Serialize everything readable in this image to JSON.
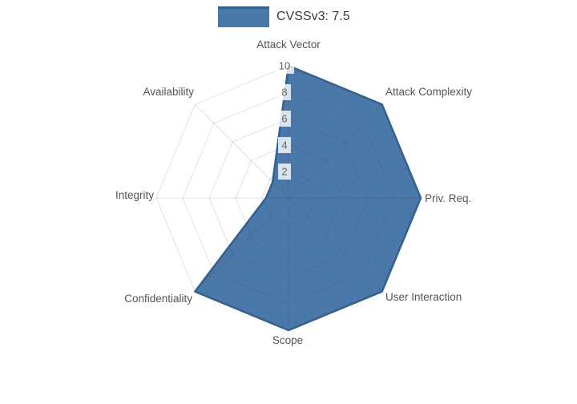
{
  "chart_data": {
    "type": "radar",
    "legend_label": "CVSSv3: 7.5",
    "categories": [
      "Attack Vector",
      "Attack Complexity",
      "Priv. Req.",
      "User Interaction",
      "Scope",
      "Confidentiality",
      "Integrity",
      "Availability"
    ],
    "series": [
      {
        "name": "CVSSv3: 7.5",
        "values": [
          10,
          10,
          10,
          10,
          10,
          10,
          1.7,
          1.7
        ]
      }
    ],
    "radial_ticks": [
      2,
      4,
      6,
      8,
      10
    ],
    "range": [
      0,
      10
    ],
    "grid": true,
    "legend_position": "top-center",
    "colors": {
      "fill": "#4a78a8",
      "line": "#35608e",
      "grid": "rgba(68,68,68,0.16)",
      "tick_text": "#666666",
      "tick_bg": "rgba(255,255,255,0.8)",
      "axis_label": "#545454",
      "legend_text": "#3a3a3a"
    }
  }
}
